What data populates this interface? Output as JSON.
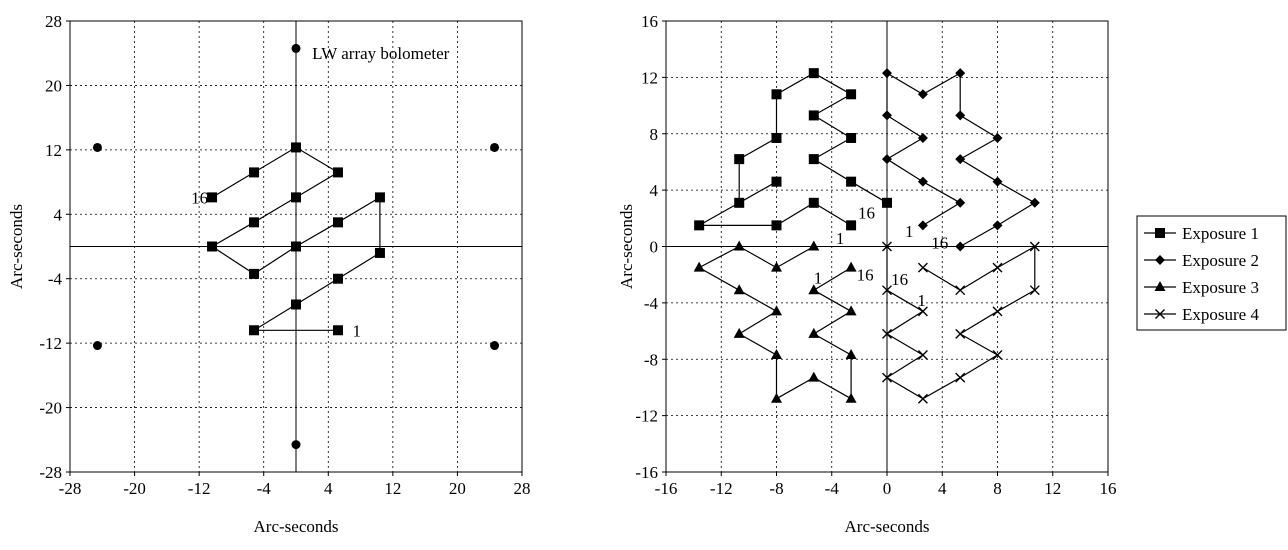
{
  "chart_data": [
    {
      "type": "scatter",
      "xlabel": "Arc-seconds",
      "ylabel": "Arc-seconds",
      "xlim": [
        -28,
        28
      ],
      "ylim": [
        -28,
        28
      ],
      "xticks": [
        -28,
        -20,
        -12,
        -4,
        4,
        12,
        20,
        28
      ],
      "yticks": [
        -28,
        -20,
        -12,
        -4,
        4,
        12,
        20,
        28
      ],
      "grid": true,
      "annotations": [
        {
          "text": "LW array bolometer",
          "x": 2,
          "y": 24
        },
        {
          "text": "16",
          "x": -13,
          "y": 6.1
        },
        {
          "text": "1",
          "x": 7,
          "y": -10.4
        }
      ],
      "series": [
        {
          "marker": "square",
          "points": [
            [
              5.2,
              -10.4
            ],
            [
              -5.2,
              -10.4
            ],
            [
              0,
              -7.2
            ],
            [
              5.2,
              -4
            ],
            [
              10.4,
              -0.8
            ],
            [
              10.4,
              6.1
            ],
            [
              5.2,
              3
            ],
            [
              0,
              0
            ],
            [
              -5.2,
              -3.4
            ],
            [
              -10.4,
              0
            ],
            [
              -5.2,
              3
            ],
            [
              0,
              6.1
            ],
            [
              5.2,
              9.2
            ],
            [
              0,
              12.3
            ],
            [
              -5.2,
              9.2
            ],
            [
              -10.4,
              6.1
            ]
          ]
        },
        {
          "marker": "circle",
          "points": [
            [
              0,
              24.6
            ],
            [
              -24.6,
              12.3
            ],
            [
              24.6,
              12.3
            ],
            [
              -24.6,
              -12.3
            ],
            [
              24.6,
              -12.3
            ],
            [
              0,
              -24.6
            ]
          ]
        }
      ]
    },
    {
      "type": "line",
      "xlabel": "Arc-seconds",
      "ylabel": "Arc-seconds",
      "xlim": [
        -16,
        16
      ],
      "ylim": [
        -16,
        16
      ],
      "xticks": [
        -16,
        -12,
        -8,
        -4,
        0,
        4,
        8,
        12,
        16
      ],
      "yticks": [
        -16,
        -12,
        -8,
        -4,
        0,
        4,
        8,
        12,
        16
      ],
      "grid": true,
      "legend": "right",
      "annotations": [
        {
          "text": "16",
          "x": -2.1,
          "y": 2.4
        },
        {
          "text": "1",
          "x": -3.7,
          "y": 0.6
        },
        {
          "text": "1",
          "x": 1.3,
          "y": 1.1
        },
        {
          "text": "16",
          "x": 3.2,
          "y": 0.3
        },
        {
          "text": "1",
          "x": -5.3,
          "y": -2.2
        },
        {
          "text": "16",
          "x": -2.2,
          "y": -2.0
        },
        {
          "text": "16",
          "x": 0.3,
          "y": -2.3
        },
        {
          "text": "1",
          "x": 2.2,
          "y": -3.8
        }
      ],
      "series": [
        {
          "name": "Exposure 1",
          "marker": "square",
          "points": [
            [
              -2.6,
              1.5
            ],
            [
              -5.3,
              3.1
            ],
            [
              -8,
              1.5
            ],
            [
              -13.6,
              1.5
            ],
            [
              -8,
              4.6
            ],
            [
              -10.7,
              3.1
            ],
            [
              -10.7,
              6.2
            ],
            [
              -8,
              7.7
            ],
            [
              -8,
              10.8
            ],
            [
              -5.3,
              12.3
            ],
            [
              -2.6,
              10.8
            ],
            [
              -5.3,
              9.3
            ],
            [
              -2.6,
              7.7
            ],
            [
              -5.3,
              6.2
            ],
            [
              -2.6,
              4.6
            ],
            [
              0,
              3.1
            ]
          ]
        },
        {
          "name": "Exposure 2",
          "marker": "diamond",
          "points": [
            [
              2.6,
              1.5
            ],
            [
              5.3,
              3.1
            ],
            [
              2.6,
              4.6
            ],
            [
              0,
              6.2
            ],
            [
              2.6,
              7.7
            ],
            [
              0,
              9.3
            ],
            [
              0,
              12.3
            ],
            [
              2.6,
              10.8
            ],
            [
              5.3,
              12.3
            ],
            [
              5.3,
              9.3
            ],
            [
              8,
              7.7
            ],
            [
              5.3,
              6.2
            ],
            [
              8,
              4.6
            ],
            [
              10.7,
              3.1
            ],
            [
              8,
              1.5
            ],
            [
              5.3,
              0
            ]
          ]
        },
        {
          "name": "Exposure 3",
          "marker": "triangle",
          "points": [
            [
              -5.3,
              0
            ],
            [
              -8,
              -1.5
            ],
            [
              -10.7,
              0
            ],
            [
              -13.6,
              -1.5
            ],
            [
              -10.7,
              -3.1
            ],
            [
              -8,
              -4.6
            ],
            [
              -10.7,
              -6.2
            ],
            [
              -8,
              -7.7
            ],
            [
              -8,
              -10.8
            ],
            [
              -5.3,
              -9.3
            ],
            [
              -2.6,
              -10.8
            ],
            [
              -2.6,
              -7.7
            ],
            [
              -5.3,
              -6.2
            ],
            [
              -2.6,
              -4.6
            ],
            [
              -5.3,
              -3.1
            ],
            [
              -2.6,
              -1.5
            ]
          ]
        },
        {
          "name": "Exposure 4",
          "marker": "cross",
          "points": [
            [
              2.6,
              -1.5
            ],
            [
              5.3,
              -3.1
            ],
            [
              8,
              -1.5
            ],
            [
              10.7,
              0
            ],
            [
              10.7,
              -3.1
            ],
            [
              8,
              -4.6
            ],
            [
              5.3,
              -6.2
            ],
            [
              8,
              -7.7
            ],
            [
              5.3,
              -9.3
            ],
            [
              2.6,
              -10.8
            ],
            [
              0,
              -9.3
            ],
            [
              2.6,
              -7.7
            ],
            [
              0,
              -6.2
            ],
            [
              2.6,
              -4.6
            ],
            [
              0,
              -3.1
            ],
            [
              0,
              0
            ]
          ]
        }
      ]
    }
  ]
}
